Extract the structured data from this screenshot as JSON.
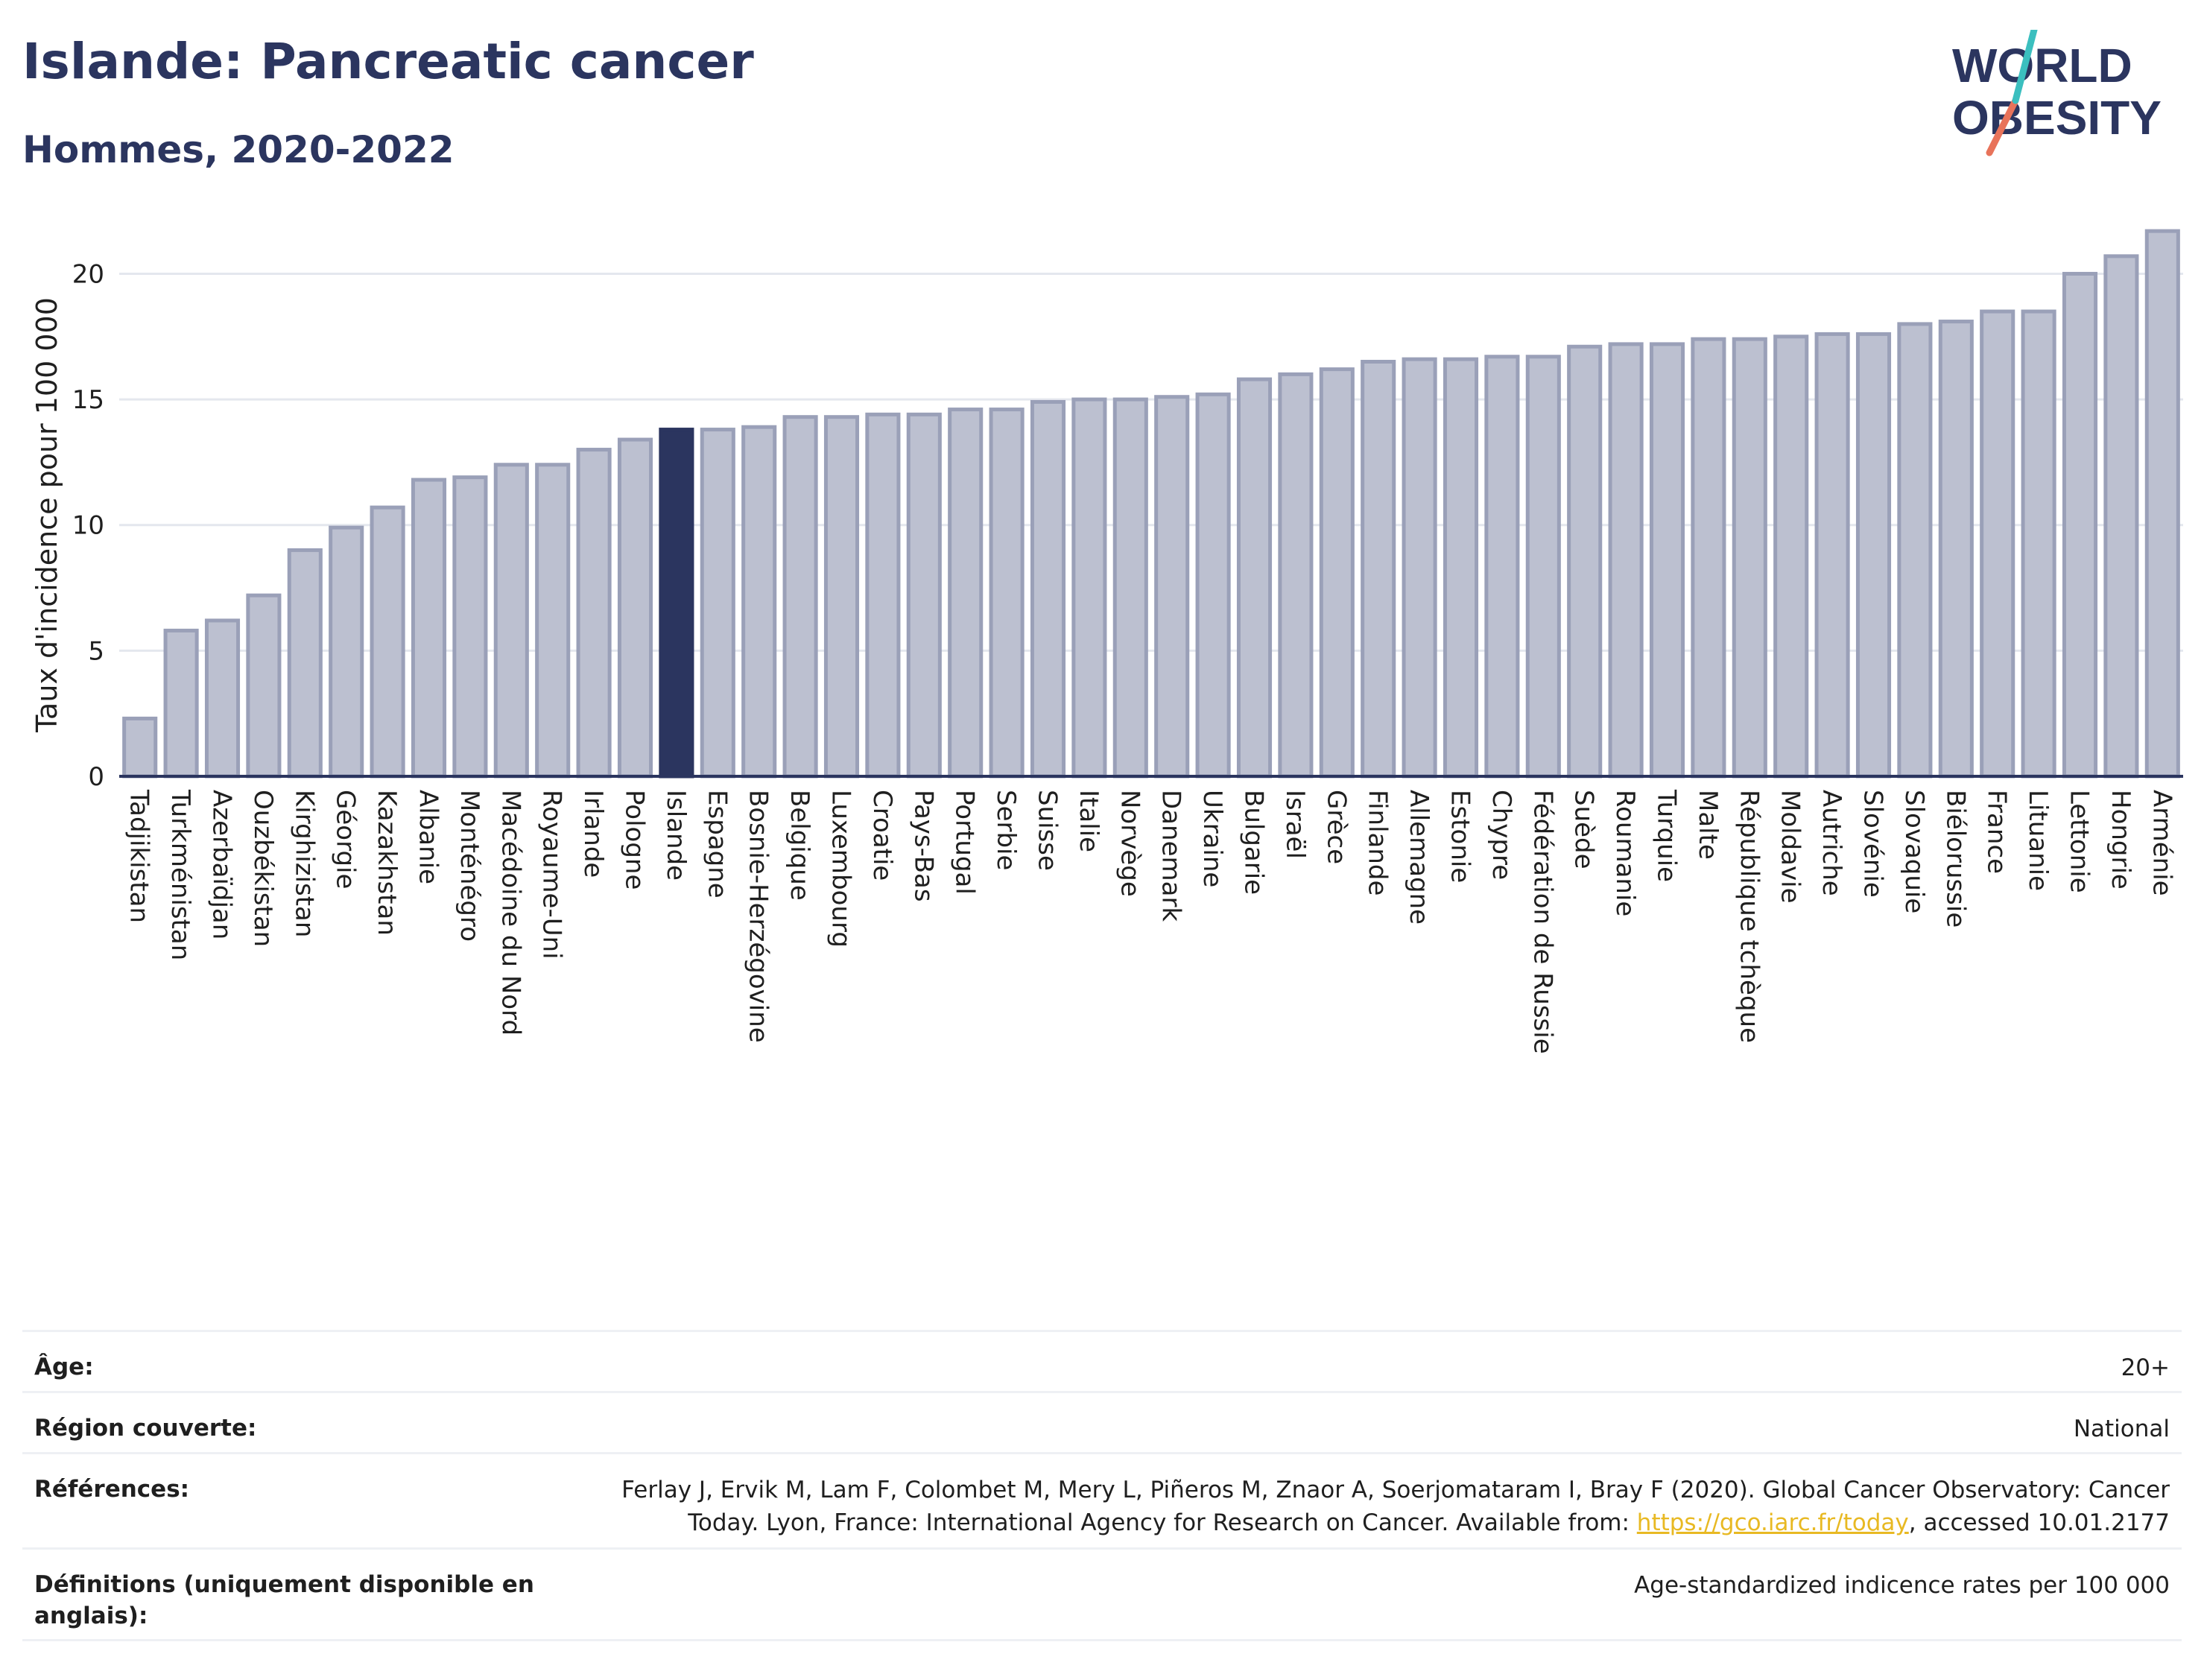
{
  "header": {
    "title": "Islande: Pancreatic cancer",
    "subtitle": "Hommes, 2020-2022"
  },
  "logo": {
    "line1": "WORLD",
    "line2": "OBESITY"
  },
  "colors": {
    "highlight": "#2b355f",
    "bar_fill": "#bcc0d0",
    "bar_stroke": "#9aa0b8",
    "title": "#2b355f",
    "logo_teal": "#3bbfbf",
    "logo_coral": "#e8735a"
  },
  "chart_data": {
    "type": "bar",
    "title": "Islande: Pancreatic cancer",
    "subtitle": "Hommes, 2020-2022",
    "xlabel": "",
    "ylabel": "Taux d'incidence pour 100 000",
    "ylim": [
      0,
      22
    ],
    "yticks": [
      0,
      5,
      10,
      15,
      20
    ],
    "grid": true,
    "highlight": "Islande",
    "categories": [
      "Tadjikistan",
      "Turkménistan",
      "Azerbaïdjan",
      "Ouzbékistan",
      "Kirghizistan",
      "Géorgie",
      "Kazakhstan",
      "Albanie",
      "Monténégro",
      "Macédoine du Nord",
      "Royaume-Uni",
      "Irlande",
      "Pologne",
      "Islande",
      "Espagne",
      "Bosnie-Herzégovine",
      "Belgique",
      "Luxembourg",
      "Croatie",
      "Pays-Bas",
      "Portugal",
      "Serbie",
      "Suisse",
      "Italie",
      "Norvège",
      "Danemark",
      "Ukraine",
      "Bulgarie",
      "Israël",
      "Grèce",
      "Finlande",
      "Allemagne",
      "Estonie",
      "Chypre",
      "Fédération de Russie",
      "Suède",
      "Roumanie",
      "Turquie",
      "Malte",
      "République tchèque",
      "Moldavie",
      "Autriche",
      "Slovénie",
      "Slovaquie",
      "Biélorussie",
      "France",
      "Lituanie",
      "Lettonie",
      "Hongrie",
      "Arménie"
    ],
    "values": [
      2.3,
      5.8,
      6.2,
      7.2,
      9.0,
      9.9,
      10.7,
      11.8,
      11.9,
      12.4,
      12.4,
      13.0,
      13.4,
      13.8,
      13.8,
      13.9,
      14.3,
      14.3,
      14.4,
      14.4,
      14.6,
      14.6,
      14.9,
      15.0,
      15.0,
      15.1,
      15.2,
      15.8,
      16.0,
      16.2,
      16.5,
      16.6,
      16.6,
      16.7,
      16.7,
      17.1,
      17.2,
      17.2,
      17.4,
      17.4,
      17.5,
      17.6,
      17.6,
      18.0,
      18.1,
      18.5,
      18.5,
      20.0,
      20.7,
      21.7
    ]
  },
  "meta": [
    {
      "label": "Âge:",
      "value": "20+"
    },
    {
      "label": "Région couverte:",
      "value": "National"
    },
    {
      "label": "Références:",
      "value": "Ferlay J, Ervik M, Lam F, Colombet M, Mery L, Piñeros M, Znaor A, Soerjomataram I, Bray F (2020). Global Cancer Observatory: Cancer Today. Lyon, France: International Agency for Research on Cancer. Available from: ",
      "link": "https://gco.iarc.fr/today",
      "suffix": ", accessed 10.01.2177"
    },
    {
      "label": "Définitions (uniquement disponible en anglais):",
      "value": "Age-standardized indicence rates per 100 000"
    }
  ]
}
